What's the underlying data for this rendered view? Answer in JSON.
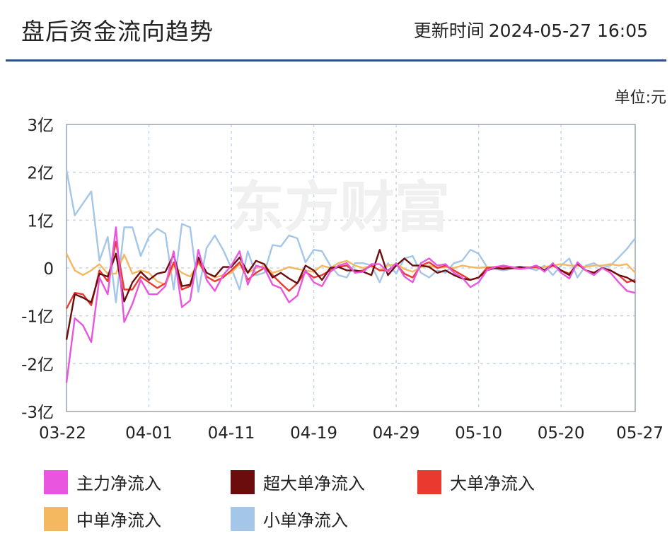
{
  "header": {
    "title": "盘后资金流向趋势",
    "update_label": "更新时间",
    "update_time": "2024-05-27 16:05"
  },
  "unit_label": "单位:元",
  "watermark": "东方财富",
  "chart_data": {
    "type": "line",
    "title": "盘后资金流向趋势",
    "xlabel": "",
    "ylabel": "",
    "ylim": [
      -3,
      3
    ],
    "yticks": [
      3,
      2,
      1,
      0,
      -1,
      -2,
      -3
    ],
    "yticklabels": [
      "3亿",
      "2亿",
      "1亿",
      "0",
      "-1亿",
      "-2亿",
      "-3亿"
    ],
    "xticklabels": [
      "03-22",
      "04-01",
      "04-11",
      "04-19",
      "04-29",
      "05-10",
      "05-20",
      "05-27"
    ],
    "xtick_index": [
      0,
      10,
      20,
      30,
      40,
      50,
      60,
      69
    ],
    "grid": true,
    "legend_position": "bottom",
    "series": [
      {
        "name": "主力净流入",
        "color": "#ea55e0",
        "values": [
          -2.4,
          -1.05,
          -1.2,
          -1.55,
          -0.2,
          -0.55,
          0.85,
          -1.13,
          -0.75,
          -0.25,
          -0.55,
          -0.55,
          -0.38,
          0.35,
          -0.82,
          -0.68,
          0.38,
          -0.25,
          -0.48,
          -0.15,
          0.05,
          0.35,
          -0.35,
          0.05,
          0.0,
          -0.35,
          -0.42,
          -0.72,
          -0.58,
          -0.05,
          -0.3,
          -0.38,
          -0.08,
          0.05,
          0.1,
          -0.1,
          -0.08,
          0.08,
          0.08,
          -0.08,
          0.1,
          -0.18,
          -0.3,
          0.1,
          0.2,
          0.05,
          0.08,
          -0.1,
          -0.2,
          -0.4,
          -0.3,
          -0.05,
          0.02,
          0.05,
          0.02,
          -0.02,
          0.0,
          0.05,
          -0.08,
          0.1,
          -0.1,
          -0.22,
          0.12,
          -0.05,
          -0.15,
          0.0,
          -0.1,
          -0.3,
          -0.48,
          -0.52
        ]
      },
      {
        "name": "超大单净流入",
        "color": "#6b0d0d",
        "values": [
          -1.5,
          -0.55,
          -0.62,
          -0.72,
          -0.12,
          -0.18,
          0.3,
          -0.7,
          -0.3,
          -0.08,
          -0.25,
          -0.12,
          -0.08,
          0.28,
          -0.38,
          -0.35,
          0.22,
          -0.1,
          -0.18,
          0.02,
          0.02,
          0.22,
          -0.1,
          0.15,
          0.08,
          -0.2,
          -0.1,
          -0.22,
          -0.32,
          0.05,
          -0.05,
          -0.25,
          0.0,
          0.02,
          -0.05,
          -0.05,
          -0.08,
          -0.15,
          0.38,
          -0.15,
          0.05,
          0.2,
          0.05,
          0.05,
          0.02,
          -0.1,
          -0.05,
          -0.15,
          -0.22,
          -0.25,
          -0.2,
          -0.05,
          0.0,
          -0.02,
          0.0,
          0.02,
          0.0,
          0.05,
          -0.05,
          0.08,
          -0.05,
          -0.15,
          0.1,
          -0.05,
          -0.1,
          0.0,
          -0.05,
          -0.15,
          -0.2,
          -0.3
        ]
      },
      {
        "name": "大单净流入",
        "color": "#ea3a30",
        "values": [
          -0.85,
          -0.52,
          -0.55,
          -0.78,
          -0.05,
          -0.28,
          0.55,
          -0.45,
          -0.45,
          -0.18,
          -0.3,
          -0.42,
          -0.32,
          0.12,
          -0.45,
          -0.38,
          0.15,
          -0.18,
          -0.28,
          -0.2,
          -0.05,
          0.12,
          -0.25,
          -0.1,
          0.0,
          -0.15,
          -0.32,
          -0.48,
          -0.32,
          -0.08,
          -0.2,
          -0.15,
          -0.05,
          0.02,
          0.05,
          -0.08,
          -0.05,
          0.05,
          -0.05,
          -0.05,
          0.08,
          -0.12,
          -0.2,
          0.05,
          0.12,
          0.0,
          0.05,
          -0.05,
          -0.15,
          -0.25,
          -0.2,
          0.0,
          0.02,
          0.02,
          0.0,
          -0.02,
          0.0,
          0.02,
          -0.05,
          0.05,
          -0.05,
          -0.12,
          0.08,
          -0.05,
          -0.1,
          0.0,
          -0.05,
          -0.15,
          -0.3,
          -0.25
        ]
      },
      {
        "name": "中单净流入",
        "color": "#f4b860",
        "values": [
          0.3,
          -0.05,
          -0.15,
          -0.05,
          0.08,
          -0.12,
          -0.12,
          0.28,
          -0.12,
          -0.05,
          -0.1,
          -0.28,
          -0.35,
          0.05,
          -0.1,
          -0.18,
          0.1,
          -0.1,
          -0.2,
          -0.15,
          -0.1,
          0.08,
          -0.1,
          0.0,
          0.05,
          -0.1,
          -0.05,
          0.02,
          -0.02,
          -0.05,
          -0.08,
          0.05,
          0.0,
          0.1,
          0.15,
          0.05,
          0.0,
          0.05,
          -0.05,
          0.05,
          0.08,
          -0.02,
          -0.08,
          0.02,
          0.05,
          0.0,
          0.02,
          0.0,
          0.05,
          0.02,
          0.0,
          0.02,
          0.0,
          -0.02,
          0.02,
          0.0,
          0.02,
          0.0,
          0.02,
          0.05,
          0.08,
          0.05,
          0.05,
          0.02,
          0.05,
          0.05,
          0.08,
          0.05,
          0.08,
          -0.1
        ]
      },
      {
        "name": "小单净流入",
        "color": "#a4c6e8",
        "values": [
          2.05,
          1.1,
          1.35,
          1.6,
          0.15,
          0.65,
          -0.72,
          0.85,
          0.85,
          0.25,
          0.65,
          0.82,
          0.72,
          -0.45,
          0.92,
          0.85,
          -0.5,
          0.42,
          0.68,
          0.38,
          0.0,
          -0.45,
          0.35,
          -0.15,
          -0.1,
          0.48,
          0.45,
          0.68,
          0.62,
          0.12,
          0.38,
          0.35,
          0.05,
          -0.15,
          -0.2,
          0.1,
          0.1,
          0.05,
          -0.3,
          0.1,
          -0.12,
          0.2,
          0.25,
          -0.1,
          -0.2,
          -0.05,
          -0.1,
          0.1,
          0.15,
          0.38,
          0.3,
          0.02,
          -0.02,
          -0.05,
          -0.02,
          0.02,
          0.0,
          -0.05,
          0.05,
          -0.15,
          0.05,
          0.2,
          -0.2,
          0.05,
          0.1,
          0.0,
          0.05,
          0.22,
          0.4,
          0.62
        ]
      }
    ]
  }
}
